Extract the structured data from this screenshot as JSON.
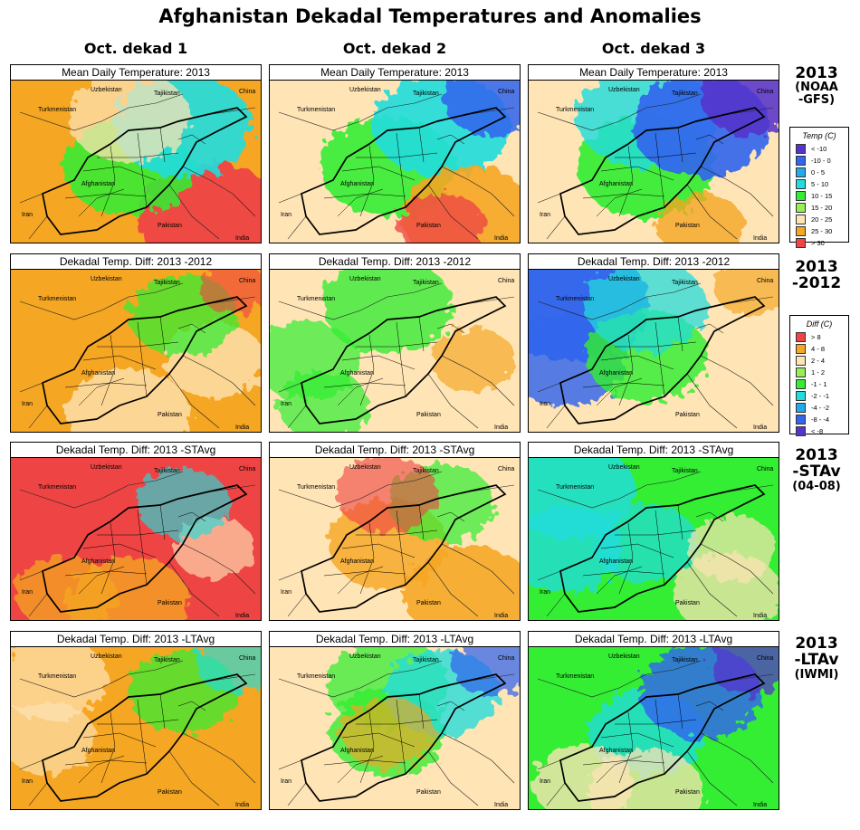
{
  "title": "Afghanistan Dekadal Temperatures and Anomalies",
  "columns": [
    "Oct. dekad 1",
    "Oct. dekad 2",
    "Oct. dekad 3"
  ],
  "country_labels": {
    "uzbekistan": "Uzbekistan",
    "tajikistan": "Tajikistan",
    "china": "China",
    "turkmenistan": "Turkmenistan",
    "afghanistan": "Afghanistan",
    "iran": "Iran",
    "pakistan": "Pakistan",
    "india": "India"
  },
  "rows": [
    {
      "panel_title": "Mean Daily Temperature: 2013",
      "label_lines": [
        "2013",
        "(NOAA",
        "-GFS)"
      ],
      "panels": [
        {
          "base": "#f5a623",
          "overlays": [
            [
              "#ef4444",
              "se",
              0.9
            ],
            [
              "#33ee33",
              "center",
              0.7
            ],
            [
              "#22dddd",
              "ne",
              0.8
            ],
            [
              "#ffe4b5",
              "n",
              0.4
            ]
          ]
        },
        {
          "base": "#ffe4b5",
          "overlays": [
            [
              "#33ee33",
              "center",
              0.75
            ],
            [
              "#22dddd",
              "ne",
              0.8
            ],
            [
              "#3366ee",
              "fne",
              0.7
            ],
            [
              "#f5a623",
              "se",
              0.75
            ],
            [
              "#ef4444",
              "sse",
              0.5
            ]
          ]
        },
        {
          "base": "#ffe4b5",
          "overlays": [
            [
              "#33ee33",
              "center",
              0.8
            ],
            [
              "#22dddd",
              "n",
              0.6
            ],
            [
              "#3366ee",
              "ne",
              0.8
            ],
            [
              "#5533cc",
              "fne",
              0.7
            ],
            [
              "#f5a623",
              "sse",
              0.5
            ]
          ]
        }
      ]
    },
    {
      "panel_title": "Dekadal Temp. Diff: 2013 -2012",
      "label_lines": [
        "2013",
        "-2012"
      ],
      "panels": [
        {
          "base": "#f5a623",
          "overlays": [
            [
              "#ffe4b5",
              "s",
              0.5
            ],
            [
              "#ffe4b5",
              "e",
              0.5
            ],
            [
              "#33ee33",
              "ne",
              0.4
            ],
            [
              "#ef4444",
              "fne",
              0.15
            ]
          ]
        },
        {
          "base": "#ffe4b5",
          "overlays": [
            [
              "#33ee33",
              "n",
              0.5
            ],
            [
              "#33ee33",
              "w",
              0.35
            ],
            [
              "#33ee33",
              "sw",
              0.35
            ],
            [
              "#f5a623",
              "e",
              0.25
            ]
          ]
        },
        {
          "base": "#ffe4b5",
          "overlays": [
            [
              "#3366ee",
              "nw",
              0.95
            ],
            [
              "#3366ee",
              "w",
              0.6
            ],
            [
              "#33ee33",
              "center",
              0.6
            ],
            [
              "#22dddd",
              "n",
              0.4
            ],
            [
              "#f5a623",
              "fne",
              0.25
            ]
          ]
        }
      ]
    },
    {
      "panel_title": "Dekadal Temp. Diff: 2013 -STAvg",
      "label_lines": [
        "2013",
        "-STAv",
        "(04-08)"
      ],
      "panels": [
        {
          "base": "#ef4444",
          "overlays": [
            [
              "#f5a623",
              "s",
              0.5
            ],
            [
              "#f5a623",
              "sw",
              0.45
            ],
            [
              "#ffe4b5",
              "e",
              0.2
            ],
            [
              "#22dddd",
              "ne",
              0.2
            ]
          ]
        },
        {
          "base": "#ffe4b5",
          "overlays": [
            [
              "#f5a623",
              "center",
              0.55
            ],
            [
              "#f5a623",
              "se",
              0.7
            ],
            [
              "#33ee33",
              "ne",
              0.35
            ],
            [
              "#ef4444",
              "n",
              0.15
            ]
          ]
        },
        {
          "base": "#33ee33",
          "overlays": [
            [
              "#22dddd",
              "nw",
              0.6
            ],
            [
              "#22dddd",
              "w",
              0.5
            ],
            [
              "#22dddd",
              "center",
              0.35
            ],
            [
              "#ffe4b5",
              "se",
              0.4
            ],
            [
              "#ffe4b5",
              "e",
              0.3
            ]
          ]
        }
      ]
    },
    {
      "panel_title": "Dekadal Temp. Diff: 2013 -LTAvg",
      "label_lines": [
        "2013",
        "-LTAv",
        "(IWMI)"
      ],
      "panels": [
        {
          "base": "#f5a623",
          "overlays": [
            [
              "#ffe4b5",
              "nw",
              0.35
            ],
            [
              "#33ee33",
              "ne",
              0.4
            ],
            [
              "#22dddd",
              "fne",
              0.25
            ],
            [
              "#ffe4b5",
              "w",
              0.25
            ]
          ]
        },
        {
          "base": "#ffe4b5",
          "overlays": [
            [
              "#33ee33",
              "center",
              0.5
            ],
            [
              "#33ee33",
              "n",
              0.4
            ],
            [
              "#22dddd",
              "ne",
              0.5
            ],
            [
              "#3366ee",
              "fne",
              0.4
            ],
            [
              "#f5a623",
              "center",
              0.2
            ]
          ]
        },
        {
          "base": "#33ee33",
          "overlays": [
            [
              "#22dddd",
              "center",
              0.5
            ],
            [
              "#3366ee",
              "ne",
              0.6
            ],
            [
              "#5533cc",
              "fne",
              0.4
            ],
            [
              "#ffe4b5",
              "sw",
              0.5
            ],
            [
              "#ffe4b5",
              "s",
              0.4
            ]
          ]
        }
      ]
    }
  ],
  "legends": [
    {
      "title": "Temp (C)",
      "items": [
        {
          "label": "< -10",
          "color": "#5533cc"
        },
        {
          "label": "-10 - 0",
          "color": "#3366ee"
        },
        {
          "label": "0 - 5",
          "color": "#22aaee"
        },
        {
          "label": "5 - 10",
          "color": "#22dddd"
        },
        {
          "label": "10 - 15",
          "color": "#33ee33"
        },
        {
          "label": "15 - 20",
          "color": "#99ee55"
        },
        {
          "label": "20 - 25",
          "color": "#ffe4b5"
        },
        {
          "label": "25 - 30",
          "color": "#f5a623"
        },
        {
          "label": "> 30",
          "color": "#ef4444"
        }
      ]
    },
    {
      "title": "Diff (C)",
      "items": [
        {
          "label": "> 8",
          "color": "#ef4444"
        },
        {
          "label": "4 - 8",
          "color": "#f5a623"
        },
        {
          "label": "2 - 4",
          "color": "#ffe4b5"
        },
        {
          "label": "1 - 2",
          "color": "#99ee55"
        },
        {
          "label": "-1 - 1",
          "color": "#33ee33"
        },
        {
          "label": "-2 - -1",
          "color": "#22dddd"
        },
        {
          "label": "-4 - -2",
          "color": "#22aaee"
        },
        {
          "label": "-8 - -4",
          "color": "#3366ee"
        },
        {
          "label": "< -8",
          "color": "#5533cc"
        }
      ]
    }
  ]
}
